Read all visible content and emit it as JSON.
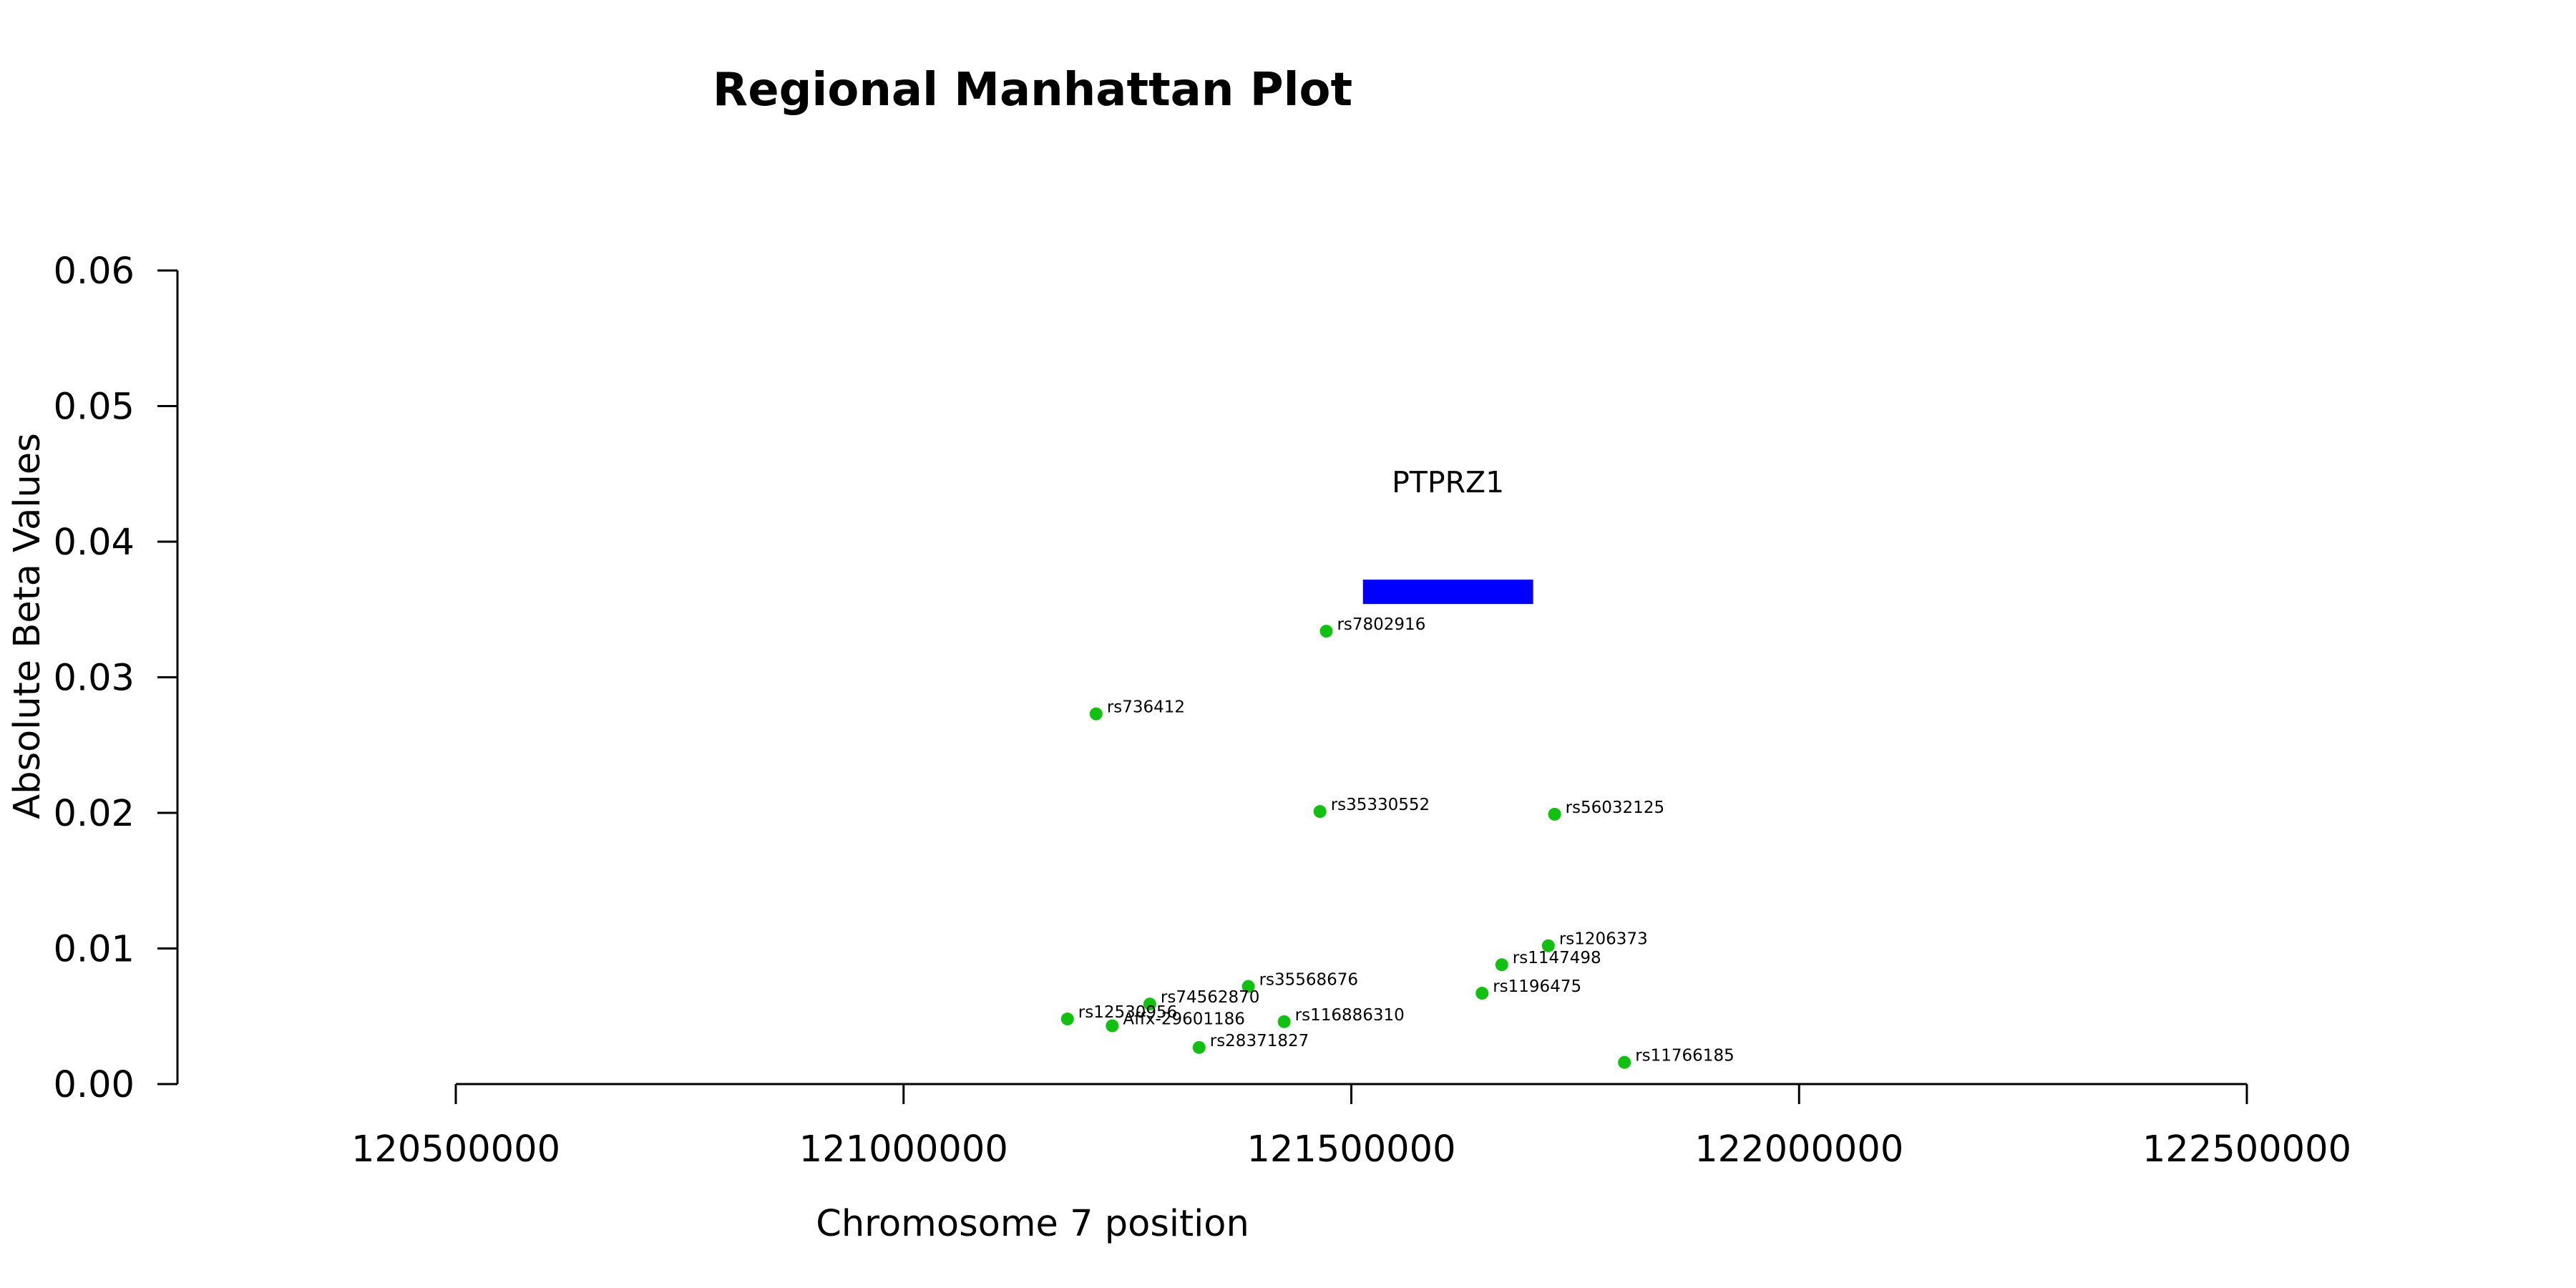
{
  "chart_data": {
    "type": "scatter",
    "title": "Regional Manhattan Plot",
    "xlabel": "Chromosome 7 position",
    "ylabel": "Absolute Beta Values",
    "xlim": [
      120500000,
      122500000
    ],
    "ylim": [
      0,
      0.06
    ],
    "x_ticks": [
      120500000,
      121000000,
      121500000,
      122000000,
      122500000
    ],
    "y_ticks": [
      0.0,
      0.01,
      0.02,
      0.03,
      0.04,
      0.05,
      0.06
    ],
    "x_tick_labels": [
      "120500000",
      "121000000",
      "121500000",
      "122000000",
      "122500000"
    ],
    "y_tick_labels": [
      "0.00",
      "0.01",
      "0.02",
      "0.03",
      "0.04",
      "0.05",
      "0.06"
    ],
    "point_color": "#11c011",
    "points": [
      {
        "label": "rs7802916",
        "x": 121472000,
        "y": 0.0334
      },
      {
        "label": "rs736412",
        "x": 121215000,
        "y": 0.0273
      },
      {
        "label": "rs35330552",
        "x": 121465000,
        "y": 0.0201
      },
      {
        "label": "rs56032125",
        "x": 121727000,
        "y": 0.0199
      },
      {
        "label": "rs1206373",
        "x": 121720000,
        "y": 0.0102
      },
      {
        "label": "rs1147498",
        "x": 121668000,
        "y": 0.0088
      },
      {
        "label": "rs35568676",
        "x": 121385000,
        "y": 0.0072
      },
      {
        "label": "rs1196475",
        "x": 121646000,
        "y": 0.0067
      },
      {
        "label": "rs74562870",
        "x": 121275000,
        "y": 0.0059
      },
      {
        "label": "rs12530956",
        "x": 121183000,
        "y": 0.0048
      },
      {
        "label": "Affx-29601186",
        "x": 121233000,
        "y": 0.0043
      },
      {
        "label": "rs116886310",
        "x": 121425000,
        "y": 0.0046
      },
      {
        "label": "rs28371827",
        "x": 121330000,
        "y": 0.0027
      },
      {
        "label": "rs11766185",
        "x": 121805000,
        "y": 0.0016
      }
    ],
    "gene": {
      "name": "PTPRZ1",
      "start": 121513000,
      "end": 121703000,
      "y_bottom": 0.0354,
      "y_top": 0.0372,
      "color": "#0000ff"
    }
  }
}
